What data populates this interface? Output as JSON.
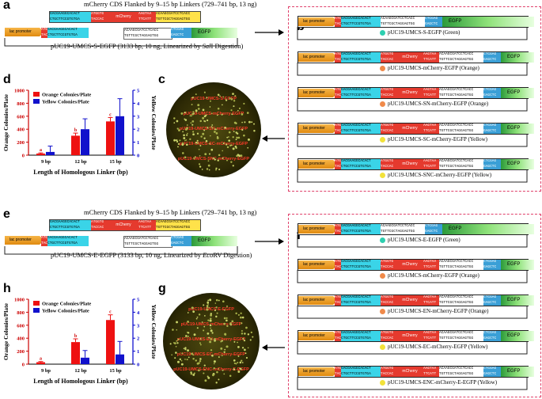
{
  "panel_labels": {
    "a": "a",
    "b": "b",
    "c": "c",
    "d": "d",
    "e": "e",
    "f": "f",
    "g": "g",
    "h": "h"
  },
  "top": {
    "insert_caption": "mCherry CDS Flanked by 9–15 bp Linkers (729–741 bp, 13 ng)",
    "vector_caption_prefix": "pUC19-UMCS-S-EGFP (3133 bp, 10 ng, Linearized by ",
    "vector_caption_italic": "Sal",
    "vector_caption_suffix": "I Digestion)",
    "promoter_label": "lac promoter",
    "mcherry_label": "mCherry",
    "egfp_label": "EGFP",
    "seq_top": "GACGAAGGCACACT",
    "seq_bot": "CTGCTTCCGTGTGA",
    "seq_mid1": "ATGGTG",
    "seq_mid2": "TACCAC",
    "seq_end1": "AAGTAA",
    "seq_end2": "TTCATT",
    "seq_right1": "ACAAGCGATCCTCACC",
    "seq_right2": "TGTTCGCTAGGAGTGG"
  },
  "bottom": {
    "insert_caption": "mCherry CDS Flanked by 9–15 bp Linkers (729–741 bp, 13 ng)",
    "vector_caption_prefix": "pUC19-UMCS-E-EGFP (3133 bp, 10 ng, Linearized by ",
    "vector_caption_italic": "Eco",
    "vector_caption_suffix": "RV Digestion)"
  },
  "constructs_b": [
    {
      "name": "pUC19-UMCS-S-EGFP (Green)",
      "kind": "empty",
      "bulb": "#2ecfb0"
    },
    {
      "name": "pUC19-UMCS-mCherry-EGFP (Orange)",
      "kind": "full",
      "bulb": "#f08a4a"
    },
    {
      "name": "pUC19-UMCS-SN-mCherry-EGFP (Orange)",
      "kind": "full",
      "bulb": "#f08a4a"
    },
    {
      "name": "pUC19-UMCS-SC-mCherry-EGFP (Yellow)",
      "kind": "full",
      "bulb": "#f2e23a"
    },
    {
      "name": "pUC19-UMCS-SNC-mCherry-EGFP (Yellow)",
      "kind": "full",
      "bulb": "#f2e23a"
    }
  ],
  "constructs_f": [
    {
      "name": "pUC19-UMCS-E-EGFP (Green)",
      "kind": "empty",
      "bulb": "#2ecfb0"
    },
    {
      "name": "pUC19-UMCS-mCherry-EGFP (Orange)",
      "kind": "full",
      "bulb": "#f08a4a"
    },
    {
      "name": "pUC19-UMCS-EN-mCherry-EGFP (Orange)",
      "kind": "full",
      "bulb": "#f08a4a"
    },
    {
      "name": "pUC19-UMCS-EC-mCherry-EGFP (Yellow)",
      "kind": "full",
      "bulb": "#f2e23a"
    },
    {
      "name": "pUC19-UMCS-ENC-mCherry-E-EGFP (Yellow)",
      "kind": "full",
      "bulb": "#f2e23a"
    }
  ],
  "plate_c": [
    "pUC19-UMCS-S-EGFP",
    "pUC19-UMCS-mCherry-EGFP",
    "pUC19-UMCS-SN-mCherry-EGFP",
    "pUC19-UMCS-SC-mCherry-EGFP",
    "pUC19-UMCS-SNC-mCherry-EGFP"
  ],
  "plate_g": [
    "pUC19-UMCS-E-EGFP",
    "pUC19-UMCS-mCherry-EGFP",
    "pUC19-UMCS-EN-mCherry-EGFP",
    "pUC19-UMCS-EC-mCherry-EGFP",
    "pUC19-UMCS-ENC-mCherry-E-EGFP"
  ],
  "chart_data": [
    {
      "type": "bar",
      "panel": "d",
      "categories": [
        "9 bp",
        "12 bp",
        "15 bp"
      ],
      "series": [
        {
          "name": "Orange Colonies/Plate",
          "color": "#ee1111",
          "axis": "left",
          "values": [
            25,
            300,
            520
          ],
          "errors": [
            10,
            40,
            60
          ],
          "letters": [
            "a",
            "b",
            "c"
          ]
        },
        {
          "name": "Yellow Colonies/Plate",
          "color": "#1111cc",
          "axis": "right",
          "values": [
            0.25,
            2.0,
            3.0
          ],
          "errors": [
            0.45,
            0.8,
            1.35
          ],
          "letters": [
            "",
            "",
            ""
          ]
        }
      ],
      "xlabel": "Length of Homologous Linker (bp)",
      "ylabel": "Orange Colonies/Plate",
      "ylabel_right": "Yellow Colonies/Plate",
      "ylim": [
        0,
        1000
      ],
      "yticks": [
        0,
        200,
        400,
        600,
        800,
        1000
      ],
      "ylim_right": [
        0,
        5
      ],
      "yticks_right": [
        0,
        1,
        2,
        3,
        4,
        5
      ]
    },
    {
      "type": "bar",
      "panel": "h",
      "categories": [
        "9 bp",
        "12 bp",
        "15 bp"
      ],
      "series": [
        {
          "name": "Orange Colonies/Plate",
          "color": "#ee1111",
          "axis": "left",
          "values": [
            30,
            340,
            680
          ],
          "errors": [
            10,
            50,
            80
          ],
          "letters": [
            "a",
            "b",
            "c"
          ]
        },
        {
          "name": "Yellow Colonies/Plate",
          "color": "#1111cc",
          "axis": "right",
          "values": [
            0,
            0.5,
            0.75
          ],
          "errors": [
            0,
            0.55,
            1.0
          ],
          "letters": [
            "",
            "",
            ""
          ]
        }
      ],
      "xlabel": "Length of Homologous Linker (bp)",
      "ylabel": "Orange Colonies/Plate",
      "ylabel_right": "Yellow Colonies/Plate",
      "ylim": [
        0,
        1000
      ],
      "yticks": [
        0,
        200,
        400,
        600,
        800,
        1000
      ],
      "ylim_right": [
        0,
        5
      ],
      "yticks_right": [
        0,
        1,
        2,
        3,
        4,
        5
      ]
    }
  ]
}
